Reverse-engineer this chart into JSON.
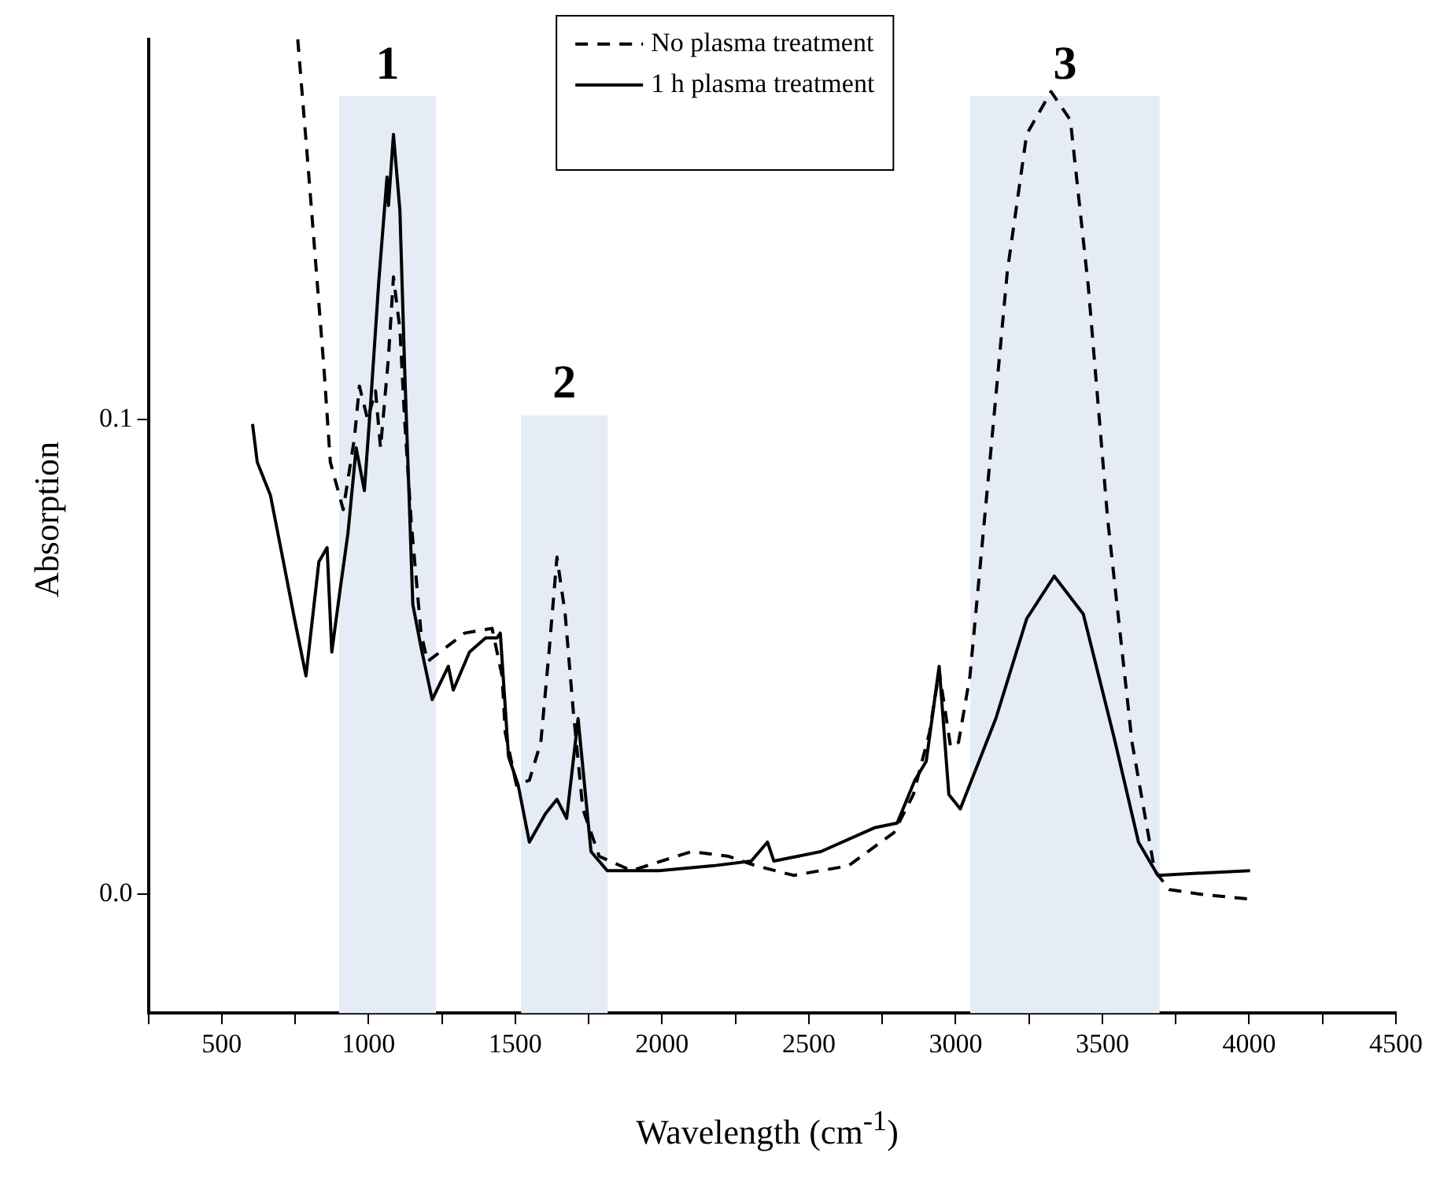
{
  "chart_data": {
    "type": "line",
    "xlabel": "Wavelength (cm$^{-1}$)",
    "ylabel": "Absorption",
    "xlim": [
      250,
      4500
    ],
    "xticks": [
      {
        "value": 250,
        "label": null
      },
      500,
      {
        "value": 750,
        "label": null
      },
      1000,
      {
        "value": 1250,
        "label": null
      },
      1500,
      {
        "value": 1750,
        "label": null
      },
      2000,
      {
        "value": 2250,
        "label": null
      },
      2500,
      {
        "value": 2750,
        "label": null
      },
      3000,
      {
        "value": 3250,
        "label": null
      },
      3500,
      {
        "value": 3750,
        "label": null
      },
      4000,
      {
        "value": 4250,
        "label": null
      },
      4500
    ],
    "ylim": [
      -0.025,
      0.18
    ],
    "yticks": [
      {
        "value": 0,
        "label": "0.0"
      },
      0.1
    ],
    "grid": false,
    "legend": "top",
    "marker": "none",
    "bands": [
      {
        "axis": "x",
        "from": 900,
        "to": 1230,
        "label": "1",
        "color": "#e6ecf5"
      },
      {
        "axis": "x",
        "from": 1520,
        "to": 1815,
        "label": "2",
        "color": "#e6ecf5"
      },
      {
        "axis": "x",
        "from": 3050,
        "to": 3695,
        "label": "3",
        "color": "#e6ecf5"
      }
    ],
    "series": [
      {
        "name": "No plasma treatment",
        "color": "#000000",
        "line_style": "dashed",
        "x": [
          759,
          792,
          820,
          848,
          870,
          914,
          952,
          969,
          997,
          1024,
          1041,
          1068,
          1085,
          1107,
          1123,
          1146,
          1179,
          1201,
          1328,
          1421,
          1455,
          1466,
          1504,
          1548,
          1587,
          1615,
          1642,
          1670,
          1697,
          1730,
          1786,
          1896,
          2100,
          2227,
          2321,
          2448,
          2635,
          2790,
          2856,
          2911,
          2944,
          2983,
          3010,
          3049,
          3115,
          3176,
          3242,
          3325,
          3391,
          3452,
          3518,
          3601,
          3678,
          3728,
          3838,
          4003
        ],
        "values": [
          0.18,
          0.155,
          0.133,
          0.111,
          0.091,
          0.081,
          0.096,
          0.107,
          0.1,
          0.106,
          0.094,
          0.113,
          0.13,
          0.119,
          0.1,
          0.078,
          0.055,
          0.049,
          0.055,
          0.056,
          0.046,
          0.034,
          0.023,
          0.024,
          0.032,
          0.051,
          0.071,
          0.059,
          0.039,
          0.018,
          0.008,
          0.005,
          0.009,
          0.008,
          0.006,
          0.004,
          0.006,
          0.013,
          0.021,
          0.034,
          0.047,
          0.031,
          0.032,
          0.046,
          0.09,
          0.131,
          0.16,
          0.169,
          0.163,
          0.128,
          0.079,
          0.032,
          0.005,
          0.001,
          0.0,
          -0.001
        ]
      },
      {
        "name": "1 h plasma treatment",
        "color": "#000000",
        "line_style": "solid",
        "x": [
          605,
          621,
          666,
          704,
          748,
          787,
          831,
          859,
          875,
          903,
          930,
          958,
          986,
          1008,
          1035,
          1063,
          1068,
          1085,
          1107,
          1123,
          1151,
          1179,
          1217,
          1272,
          1289,
          1344,
          1399,
          1438,
          1449,
          1477,
          1510,
          1548,
          1603,
          1642,
          1675,
          1714,
          1758,
          1813,
          1990,
          2172,
          2304,
          2359,
          2381,
          2541,
          2723,
          2801,
          2861,
          2900,
          2944,
          2977,
          3016,
          3137,
          3242,
          3336,
          3435,
          3540,
          3623,
          3689,
          4003
        ],
        "values": [
          0.099,
          0.091,
          0.084,
          0.072,
          0.058,
          0.046,
          0.07,
          0.073,
          0.051,
          0.064,
          0.076,
          0.094,
          0.085,
          0.104,
          0.129,
          0.151,
          0.145,
          0.16,
          0.144,
          0.111,
          0.061,
          0.052,
          0.041,
          0.048,
          0.043,
          0.051,
          0.054,
          0.054,
          0.055,
          0.029,
          0.023,
          0.011,
          0.017,
          0.02,
          0.016,
          0.037,
          0.009,
          0.005,
          0.005,
          0.006,
          0.007,
          0.011,
          0.007,
          0.009,
          0.014,
          0.015,
          0.024,
          0.028,
          0.048,
          0.021,
          0.018,
          0.037,
          0.058,
          0.067,
          0.059,
          0.033,
          0.011,
          0.004,
          0.005
        ]
      }
    ]
  }
}
